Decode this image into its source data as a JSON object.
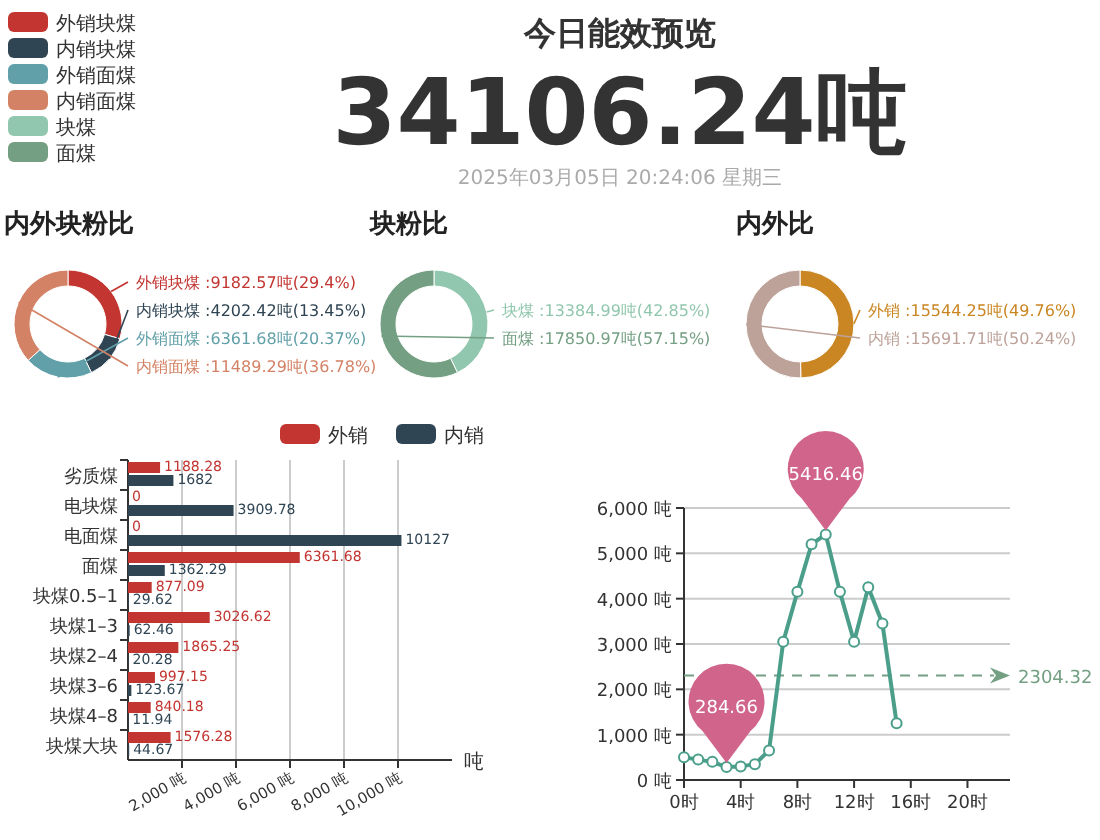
{
  "chart_data": [
    {
      "type": "other",
      "title": "今日能效预览",
      "annotations": [
        "34106.24吨",
        "2025年03月05日 20:24:06 星期三"
      ]
    },
    {
      "type": "donut",
      "title": "内外块粉比",
      "categories": [
        "外销块煤",
        "内销块煤",
        "外销面煤",
        "内销面煤"
      ],
      "values": [
        9182.57,
        4202.42,
        6361.68,
        11489.29
      ],
      "colors": [
        "#c23531",
        "#2f4554",
        "#61a0a8",
        "#d48265"
      ],
      "value_labels": [
        ":9182.57吨(29.4%)",
        ":4202.42吨(13.45%)",
        ":6361.68吨(20.37%)",
        ":11489.29吨(36.78%)"
      ],
      "legend": "top left"
    },
    {
      "type": "donut",
      "title": "块粉比",
      "categories": [
        "块煤",
        "面煤"
      ],
      "values": [
        13384.99,
        17850.97
      ],
      "colors": [
        "#91c7ae",
        "#749f83"
      ],
      "value_labels": [
        ":13384.99吨(42.85%)",
        ":17850.97吨(57.15%)"
      ],
      "legend": "top left"
    },
    {
      "type": "donut",
      "title": "内外比",
      "categories": [
        "外销",
        "内销"
      ],
      "values": [
        15544.25,
        15691.71
      ],
      "colors": [
        "#ca8622",
        "#bda29a"
      ],
      "value_labels": [
        ":15544.25吨(49.76%)",
        ":15691.71吨(50.24%)"
      ]
    },
    {
      "type": "bar",
      "orientation": "horizontal",
      "categories": [
        "劣质煤",
        "电块煤",
        "电面煤",
        "面煤",
        "块煤0.5–1",
        "块煤1–3",
        "块煤2–4",
        "块煤3–6",
        "块煤4–8",
        "块煤大块"
      ],
      "series": [
        {
          "name": "外销",
          "color": "#c23531",
          "values": [
            1188.28,
            0,
            0,
            6361.68,
            877.09,
            3026.62,
            1865.25,
            997.15,
            840.18,
            1576.28
          ]
        },
        {
          "name": "内销",
          "color": "#2f4554",
          "values": [
            1682,
            3909.78,
            10127,
            1362.29,
            29.62,
            62.46,
            20.28,
            123.67,
            11.94,
            44.67
          ]
        }
      ],
      "xlim": [
        0,
        12000
      ],
      "xticks": [
        {
          "value": 2000,
          "label": "2,000 吨"
        },
        {
          "value": 4000,
          "label": "4,000 吨"
        },
        {
          "value": 6000,
          "label": "6,000 吨"
        },
        {
          "value": 8000,
          "label": "8,000 吨"
        },
        {
          "value": 10000,
          "label": "10,000 吨"
        }
      ],
      "xlabel": "吨",
      "grid": "x",
      "legend": "top right",
      "data_labels": true
    },
    {
      "type": "line",
      "x": [
        0,
        1,
        2,
        3,
        4,
        5,
        6,
        7,
        8,
        9,
        10,
        11,
        12,
        13,
        14,
        15
      ],
      "series": [
        {
          "color": "#4a9e8a",
          "values": [
            500,
            450,
            400,
            284.66,
            300,
            350,
            650,
            3050,
            4150,
            5200,
            5416.46,
            4150,
            3050,
            4250,
            3450,
            1250
          ]
        }
      ],
      "xlim": [
        0,
        23
      ],
      "xticks": [
        {
          "value": 0,
          "label": "0时"
        },
        {
          "value": 4,
          "label": "4时"
        },
        {
          "value": 8,
          "label": "8时"
        },
        {
          "value": 12,
          "label": "12时"
        },
        {
          "value": 16,
          "label": "16时"
        },
        {
          "value": 20,
          "label": "20时"
        }
      ],
      "ylim": [
        0,
        6000
      ],
      "yticks": [
        {
          "value": 0,
          "label": "0 吨"
        },
        {
          "value": 1000,
          "label": "1,000 吨"
        },
        {
          "value": 2000,
          "label": "2,000 吨"
        },
        {
          "value": 3000,
          "label": "3,000 吨"
        },
        {
          "value": 4000,
          "label": "4,000 吨"
        },
        {
          "value": 5000,
          "label": "5,000 吨"
        },
        {
          "value": 6000,
          "label": "6,000 吨"
        }
      ],
      "grid": "y",
      "marker": "circle",
      "line_style": "solid",
      "annotations": [
        {
          "text": "5416.46",
          "x": 10,
          "y": 5416.46
        },
        {
          "text": "284.66",
          "x": 3,
          "y": 284.66
        }
      ],
      "ref_lines": [
        {
          "axis": "y",
          "value": 2304.32,
          "label": "2304.32",
          "color": "#749f83",
          "line_style": "dashed"
        }
      ]
    }
  ]
}
